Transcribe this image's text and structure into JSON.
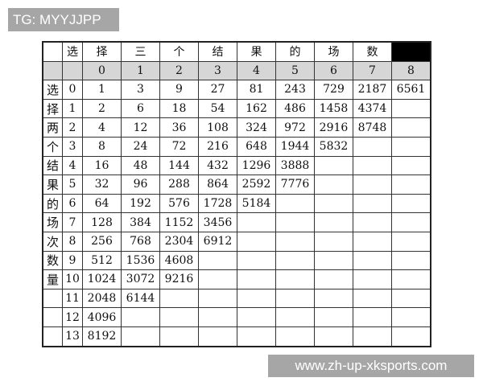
{
  "tag": "TG: MYYJJPP",
  "watermark": "www.zh-up-xksports.com",
  "header_chars": [
    "",
    "选",
    "择",
    "三",
    "个",
    "结",
    "果",
    "的",
    "场",
    "数",
    ""
  ],
  "col_index": [
    "",
    "",
    "0",
    "1",
    "2",
    "3",
    "4",
    "5",
    "6",
    "7",
    "8"
  ],
  "row_labels": [
    "选",
    "择",
    "两",
    "个",
    "结",
    "果",
    "的",
    "场",
    "次",
    "数",
    "量",
    "",
    "",
    ""
  ],
  "rows": [
    [
      "0",
      "1",
      "3",
      "9",
      "27",
      "81",
      "243",
      "729",
      "2187",
      "6561"
    ],
    [
      "1",
      "2",
      "6",
      "18",
      "54",
      "162",
      "486",
      "1458",
      "4374",
      ""
    ],
    [
      "2",
      "4",
      "12",
      "36",
      "108",
      "324",
      "972",
      "2916",
      "8748",
      ""
    ],
    [
      "3",
      "8",
      "24",
      "72",
      "216",
      "648",
      "1944",
      "5832",
      "",
      ""
    ],
    [
      "4",
      "16",
      "48",
      "144",
      "432",
      "1296",
      "3888",
      "",
      "",
      ""
    ],
    [
      "5",
      "32",
      "96",
      "288",
      "864",
      "2592",
      "7776",
      "",
      "",
      ""
    ],
    [
      "6",
      "64",
      "192",
      "576",
      "1728",
      "5184",
      "",
      "",
      "",
      ""
    ],
    [
      "7",
      "128",
      "384",
      "1152",
      "3456",
      "",
      "",
      "",
      "",
      ""
    ],
    [
      "8",
      "256",
      "768",
      "2304",
      "6912",
      "",
      "",
      "",
      "",
      ""
    ],
    [
      "9",
      "512",
      "1536",
      "4608",
      "",
      "",
      "",
      "",
      "",
      ""
    ],
    [
      "10",
      "1024",
      "3072",
      "9216",
      "",
      "",
      "",
      "",
      "",
      ""
    ],
    [
      "11",
      "2048",
      "6144",
      "",
      "",
      "",
      "",
      "",
      "",
      ""
    ],
    [
      "12",
      "4096",
      "",
      "",
      "",
      "",
      "",
      "",
      "",
      ""
    ],
    [
      "13",
      "8192",
      "",
      "",
      "",
      "",
      "",
      "",
      "",
      ""
    ]
  ]
}
